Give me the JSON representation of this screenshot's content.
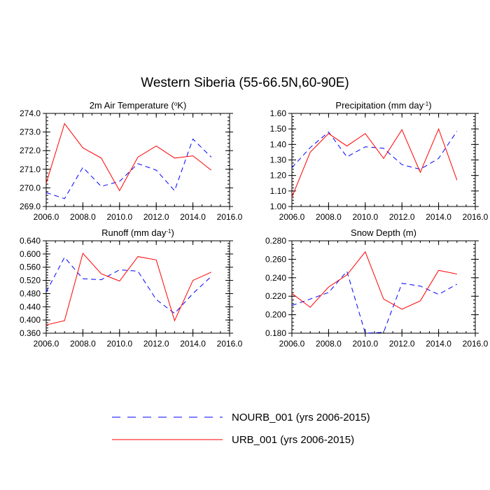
{
  "figure_title": "Western Siberia (55-66.5N,60-90E)",
  "colors": {
    "nourb": "#0000ff",
    "urb": "#ff0000",
    "axis": "#000000"
  },
  "legend": [
    {
      "label": "NOURB_001 (yrs 2006-2015)",
      "color": "#0000ff",
      "style": "dashed"
    },
    {
      "label": "URB_001 (yrs 2006-2015)",
      "color": "#ff0000",
      "style": "solid"
    }
  ],
  "chart_data": [
    {
      "type": "line",
      "title": "2m Air Temperature (°K)",
      "title_parts": {
        "prefix": "2m Air Temperature (",
        "sup": "o",
        "suffix": "K)"
      },
      "x": [
        2006,
        2007,
        2008,
        2009,
        2010,
        2011,
        2012,
        2013,
        2014,
        2015
      ],
      "xlim": [
        2006,
        2016
      ],
      "xticks": [
        "2006.0",
        "2008.0",
        "2010.0",
        "2012.0",
        "2014.0",
        "2016.0"
      ],
      "ylim": [
        269.0,
        274.0
      ],
      "yticks": [
        "269.0",
        "270.0",
        "271.0",
        "272.0",
        "273.0",
        "274.0"
      ],
      "series": [
        {
          "name": "NOURB_001",
          "values": [
            269.75,
            269.42,
            271.1,
            270.08,
            270.35,
            271.3,
            270.95,
            269.85,
            272.62,
            271.65
          ]
        },
        {
          "name": "URB_001",
          "values": [
            270.25,
            273.45,
            272.15,
            271.6,
            269.85,
            271.65,
            272.25,
            271.6,
            271.72,
            270.95
          ]
        }
      ]
    },
    {
      "type": "line",
      "title": "Precipitation (mm day-1)",
      "title_parts": {
        "prefix": "Precipitation (mm day",
        "sup": "-1",
        "suffix": ")"
      },
      "x": [
        2006,
        2007,
        2008,
        2009,
        2010,
        2011,
        2012,
        2013,
        2014,
        2015
      ],
      "xlim": [
        2006,
        2016
      ],
      "xticks": [
        "2006.0",
        "2008.0",
        "2010.0",
        "2012.0",
        "2014.0",
        "2016.0"
      ],
      "ylim": [
        1.0,
        1.6
      ],
      "yticks": [
        "1.00",
        "1.10",
        "1.20",
        "1.30",
        "1.40",
        "1.50",
        "1.60"
      ],
      "series": [
        {
          "name": "NOURB_001",
          "values": [
            1.25,
            1.38,
            1.48,
            1.32,
            1.385,
            1.375,
            1.27,
            1.24,
            1.31,
            1.485
          ]
        },
        {
          "name": "URB_001",
          "values": [
            1.06,
            1.35,
            1.47,
            1.39,
            1.47,
            1.31,
            1.495,
            1.22,
            1.5,
            1.17
          ]
        }
      ]
    },
    {
      "type": "line",
      "title": "Runoff (mm day-1)",
      "title_parts": {
        "prefix": "Runoff (mm day",
        "sup": "-1",
        "suffix": ")"
      },
      "x": [
        2006,
        2007,
        2008,
        2009,
        2010,
        2011,
        2012,
        2013,
        2014,
        2015
      ],
      "xlim": [
        2006,
        2016
      ],
      "xticks": [
        "2006.0",
        "2008.0",
        "2010.0",
        "2012.0",
        "2014.0",
        "2016.0"
      ],
      "ylim": [
        0.36,
        0.64
      ],
      "yticks": [
        "0.360",
        "0.400",
        "0.440",
        "0.480",
        "0.520",
        "0.560",
        "0.600",
        "0.640"
      ],
      "series": [
        {
          "name": "NOURB_001",
          "values": [
            0.485,
            0.59,
            0.525,
            0.522,
            0.552,
            0.548,
            0.462,
            0.42,
            0.48,
            0.532
          ]
        },
        {
          "name": "URB_001",
          "values": [
            0.385,
            0.398,
            0.602,
            0.54,
            0.518,
            0.592,
            0.582,
            0.398,
            0.52,
            0.545
          ]
        }
      ]
    },
    {
      "type": "line",
      "title": "Snow Depth (m)",
      "title_parts": {
        "prefix": "Snow Depth (m)",
        "sup": "",
        "suffix": ""
      },
      "x": [
        2006,
        2007,
        2008,
        2009,
        2010,
        2011,
        2012,
        2013,
        2014,
        2015
      ],
      "xlim": [
        2006,
        2016
      ],
      "xticks": [
        "2006.0",
        "2008.0",
        "2010.0",
        "2012.0",
        "2014.0",
        "2016.0"
      ],
      "ylim": [
        0.18,
        0.28
      ],
      "yticks": [
        "0.180",
        "0.200",
        "0.220",
        "0.240",
        "0.260",
        "0.280"
      ],
      "series": [
        {
          "name": "NOURB_001",
          "values": [
            0.21,
            0.217,
            0.224,
            0.247,
            0.18,
            0.181,
            0.234,
            0.231,
            0.222,
            0.233
          ]
        },
        {
          "name": "URB_001",
          "values": [
            0.223,
            0.208,
            0.23,
            0.243,
            0.268,
            0.217,
            0.206,
            0.215,
            0.248,
            0.244
          ]
        }
      ]
    }
  ]
}
